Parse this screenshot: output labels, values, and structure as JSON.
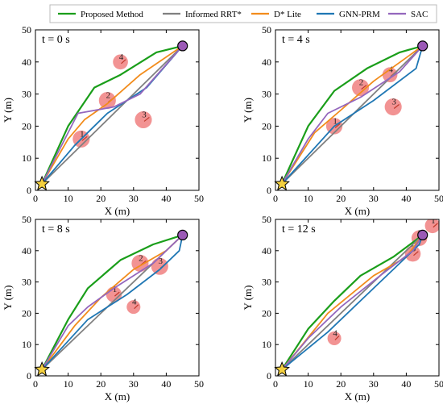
{
  "legend": [
    {
      "name": "Proposed Method",
      "color": "#1a9e1a"
    },
    {
      "name": "Informed RRT*",
      "color": "#808080"
    },
    {
      "name": "D* Lite",
      "color": "#f28c1c"
    },
    {
      "name": "GNN-PRM",
      "color": "#1f77b4"
    },
    {
      "name": "SAC",
      "color": "#9467bd"
    }
  ],
  "chart_data": [
    {
      "type": "line",
      "title": "t = 0 s",
      "xlabel": "X (m)",
      "ylabel": "Y (m)",
      "xlim": [
        0,
        50
      ],
      "ylim": [
        0,
        50
      ],
      "xticks": [
        0,
        10,
        20,
        30,
        40,
        50
      ],
      "yticks": [
        0,
        10,
        20,
        30,
        40,
        50
      ],
      "start": [
        2,
        2
      ],
      "goal": [
        45,
        45
      ],
      "obstacles": [
        {
          "label": "1",
          "x": 14,
          "y": 16,
          "r": 2.6
        },
        {
          "label": "2",
          "x": 22,
          "y": 28,
          "r": 2.6
        },
        {
          "label": "3",
          "x": 33,
          "y": 22,
          "r": 2.6
        },
        {
          "label": "4",
          "x": 26,
          "y": 40,
          "r": 2.3
        }
      ],
      "series": [
        {
          "name": "Proposed Method",
          "points": [
            [
              2,
              2
            ],
            [
              10,
              20
            ],
            [
              18,
              32
            ],
            [
              26,
              36
            ],
            [
              37,
              43
            ],
            [
              45,
              45
            ]
          ]
        },
        {
          "name": "Informed RRT*",
          "points": [
            [
              2,
              2
            ],
            [
              45,
              45
            ]
          ]
        },
        {
          "name": "D* Lite",
          "points": [
            [
              2,
              2
            ],
            [
              10,
              16
            ],
            [
              15,
              22
            ],
            [
              22,
              27
            ],
            [
              32,
              36
            ],
            [
              45,
              45
            ]
          ]
        },
        {
          "name": "GNN-PRM",
          "points": [
            [
              2,
              2
            ],
            [
              12,
              14
            ],
            [
              22,
              24
            ],
            [
              34,
              32
            ],
            [
              45,
              45
            ]
          ]
        },
        {
          "name": "SAC",
          "points": [
            [
              2,
              2
            ],
            [
              13,
              24
            ],
            [
              24,
              26
            ],
            [
              32,
              30
            ],
            [
              45,
              45
            ]
          ]
        }
      ]
    },
    {
      "type": "line",
      "title": "t = 4 s",
      "xlabel": "X (m)",
      "ylabel": "Y (m)",
      "xlim": [
        0,
        50
      ],
      "ylim": [
        0,
        50
      ],
      "xticks": [
        0,
        10,
        20,
        30,
        40,
        50
      ],
      "yticks": [
        0,
        10,
        20,
        30,
        40,
        50
      ],
      "start": [
        2,
        2
      ],
      "goal": [
        45,
        45
      ],
      "obstacles": [
        {
          "label": "1",
          "x": 18,
          "y": 20,
          "r": 2.5
        },
        {
          "label": "2",
          "x": 26,
          "y": 32,
          "r": 2.6
        },
        {
          "label": "3",
          "x": 36,
          "y": 26,
          "r": 2.6
        },
        {
          "label": "4",
          "x": 35,
          "y": 36,
          "r": 2.3
        }
      ],
      "series": [
        {
          "name": "Proposed Method",
          "points": [
            [
              2,
              2
            ],
            [
              10,
              20
            ],
            [
              18,
              31
            ],
            [
              28,
              38
            ],
            [
              38,
              43
            ],
            [
              45,
              45
            ]
          ]
        },
        {
          "name": "Informed RRT*",
          "points": [
            [
              2,
              2
            ],
            [
              45,
              45
            ]
          ]
        },
        {
          "name": "D* Lite",
          "points": [
            [
              2,
              2
            ],
            [
              12,
              18
            ],
            [
              20,
              25
            ],
            [
              30,
              34
            ],
            [
              45,
              45
            ]
          ]
        },
        {
          "name": "GNN-PRM",
          "points": [
            [
              2,
              2
            ],
            [
              18,
              20
            ],
            [
              30,
              28
            ],
            [
              43,
              38
            ],
            [
              45,
              45
            ]
          ]
        },
        {
          "name": "SAC",
          "points": [
            [
              2,
              2
            ],
            [
              10,
              16
            ],
            [
              16,
              24
            ],
            [
              26,
              29
            ],
            [
              38,
              37
            ],
            [
              45,
              45
            ]
          ]
        }
      ]
    },
    {
      "type": "line",
      "title": "t = 8 s",
      "xlabel": "X (m)",
      "ylabel": "Y (m)",
      "xlim": [
        0,
        50
      ],
      "ylim": [
        0,
        50
      ],
      "xticks": [
        0,
        10,
        20,
        30,
        40,
        50
      ],
      "yticks": [
        0,
        10,
        20,
        30,
        40,
        50
      ],
      "start": [
        2,
        2
      ],
      "goal": [
        45,
        45
      ],
      "obstacles": [
        {
          "label": "1",
          "x": 24,
          "y": 26,
          "r": 2.4
        },
        {
          "label": "2",
          "x": 32,
          "y": 36,
          "r": 2.6
        },
        {
          "label": "3",
          "x": 38,
          "y": 35,
          "r": 2.6
        },
        {
          "label": "4",
          "x": 30,
          "y": 22,
          "r": 2.1
        }
      ],
      "series": [
        {
          "name": "Proposed Method",
          "points": [
            [
              2,
              2
            ],
            [
              10,
              18
            ],
            [
              16,
              28
            ],
            [
              26,
              37
            ],
            [
              36,
              42
            ],
            [
              45,
              45
            ]
          ]
        },
        {
          "name": "Informed RRT*",
          "points": [
            [
              2,
              2
            ],
            [
              45,
              45
            ]
          ]
        },
        {
          "name": "D* Lite",
          "points": [
            [
              2,
              2
            ],
            [
              12,
              16
            ],
            [
              20,
              25
            ],
            [
              30,
              34
            ],
            [
              40,
              40
            ],
            [
              45,
              45
            ]
          ]
        },
        {
          "name": "GNN-PRM",
          "points": [
            [
              2,
              2
            ],
            [
              16,
              18
            ],
            [
              28,
              26
            ],
            [
              38,
              34
            ],
            [
              44,
              40
            ],
            [
              45,
              45
            ]
          ]
        },
        {
          "name": "SAC",
          "points": [
            [
              2,
              2
            ],
            [
              10,
              16
            ],
            [
              16,
              22
            ],
            [
              24,
              28
            ],
            [
              36,
              36
            ],
            [
              45,
              45
            ]
          ]
        }
      ]
    },
    {
      "type": "line",
      "title": "t = 12 s",
      "xlabel": "X (m)",
      "ylabel": "Y (m)",
      "xlim": [
        0,
        50
      ],
      "ylim": [
        0,
        50
      ],
      "xticks": [
        0,
        10,
        20,
        30,
        40,
        50
      ],
      "yticks": [
        0,
        10,
        20,
        30,
        40,
        50
      ],
      "start": [
        2,
        2
      ],
      "goal": [
        45,
        45
      ],
      "obstacles": [
        {
          "label": "1",
          "x": 48,
          "y": 48,
          "r": 2.3
        },
        {
          "label": "2",
          "x": 44,
          "y": 44,
          "r": 2.4
        },
        {
          "label": "3",
          "x": 42,
          "y": 39,
          "r": 2.4
        },
        {
          "label": "4",
          "x": 18,
          "y": 12,
          "r": 2.1
        }
      ],
      "series": [
        {
          "name": "Proposed Method",
          "points": [
            [
              2,
              2
            ],
            [
              10,
              15
            ],
            [
              18,
              24
            ],
            [
              26,
              32
            ],
            [
              36,
              38
            ],
            [
              45,
              45
            ]
          ]
        },
        {
          "name": "Informed RRT*",
          "points": [
            [
              2,
              2
            ],
            [
              45,
              45
            ]
          ]
        },
        {
          "name": "D* Lite",
          "points": [
            [
              2,
              2
            ],
            [
              16,
              20
            ],
            [
              30,
              32
            ],
            [
              40,
              38
            ],
            [
              45,
              45
            ]
          ]
        },
        {
          "name": "GNN-PRM",
          "points": [
            [
              2,
              2
            ],
            [
              16,
              14
            ],
            [
              28,
              26
            ],
            [
              36,
              34
            ],
            [
              44,
              42
            ],
            [
              45,
              45
            ]
          ]
        },
        {
          "name": "SAC",
          "points": [
            [
              2,
              2
            ],
            [
              10,
              12
            ],
            [
              20,
              22
            ],
            [
              32,
              32
            ],
            [
              42,
              40
            ],
            [
              45,
              45
            ]
          ]
        }
      ]
    }
  ]
}
